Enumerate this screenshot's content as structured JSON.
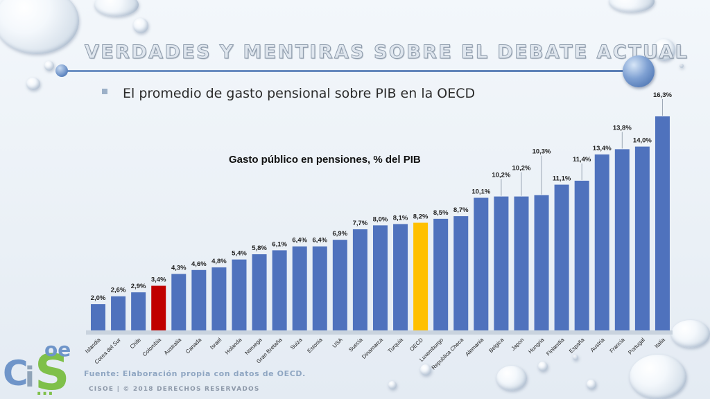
{
  "slide": {
    "title": "VERDADES Y MENTIRAS SOBRE EL DEBATE ACTUAL",
    "bullet": "El promedio de gasto pensional sobre PIB en la OECD",
    "source": "Fuente: Elaboración propia con datos de OECD.",
    "copyright": "CISOE   |   © 2018 DERECHOS RESERVADOS",
    "logo": {
      "letters": [
        "C",
        "i",
        "S",
        "oe"
      ],
      "dots": "..."
    }
  },
  "colors": {
    "bar_default": "#4f72bd",
    "bar_colombia": "#c00000",
    "bar_oecd": "#ffc000",
    "accent": "#5b7fb6"
  },
  "chart_data": {
    "type": "bar",
    "title": "Gasto público en pensiones, % del PIB",
    "categories": [
      "Islandia",
      "Corea del Sur",
      "Chile",
      "Colombia",
      "Australia",
      "Canada",
      "Israel",
      "Holanda",
      "Noruega",
      "Gran Bretaña",
      "Suiza",
      "Estonia",
      "USA",
      "Suecia",
      "Dinamarca",
      "Turquia",
      "OECD",
      "Luxemburgo",
      "Republica Checa",
      "Alemania",
      "Belgica",
      "Japon",
      "Hungria",
      "Finlandia",
      "España",
      "Austria",
      "Francia",
      "Portugal",
      "Italia"
    ],
    "values": [
      2.0,
      2.6,
      2.9,
      3.4,
      4.3,
      4.6,
      4.8,
      5.4,
      5.8,
      6.1,
      6.4,
      6.4,
      6.9,
      7.7,
      8.0,
      8.1,
      8.2,
      8.5,
      8.7,
      10.1,
      10.2,
      10.2,
      10.3,
      11.1,
      11.4,
      13.4,
      13.8,
      14.0,
      16.3
    ],
    "labels": [
      "2,0%",
      "2,6%",
      "2,9%",
      "3,4%",
      "4,3%",
      "4,6%",
      "4,8%",
      "5,4%",
      "5,8%",
      "6,1%",
      "6,4%",
      "6,4%",
      "6,9%",
      "7,7%",
      "8,0%",
      "8,1%",
      "8,2%",
      "8,5%",
      "8,7%",
      "10,1%",
      "10,2%",
      "10,2%",
      "10,3%",
      "11,1%",
      "11,4%",
      "13,4%",
      "13,8%",
      "14,0%",
      "16,3%"
    ],
    "highlight": {
      "Colombia": "bar_colombia",
      "OECD": "bar_oecd"
    },
    "ylim": [
      0,
      16.3
    ],
    "grid": false,
    "legend": "none",
    "xlabel": "",
    "ylabel": ""
  }
}
